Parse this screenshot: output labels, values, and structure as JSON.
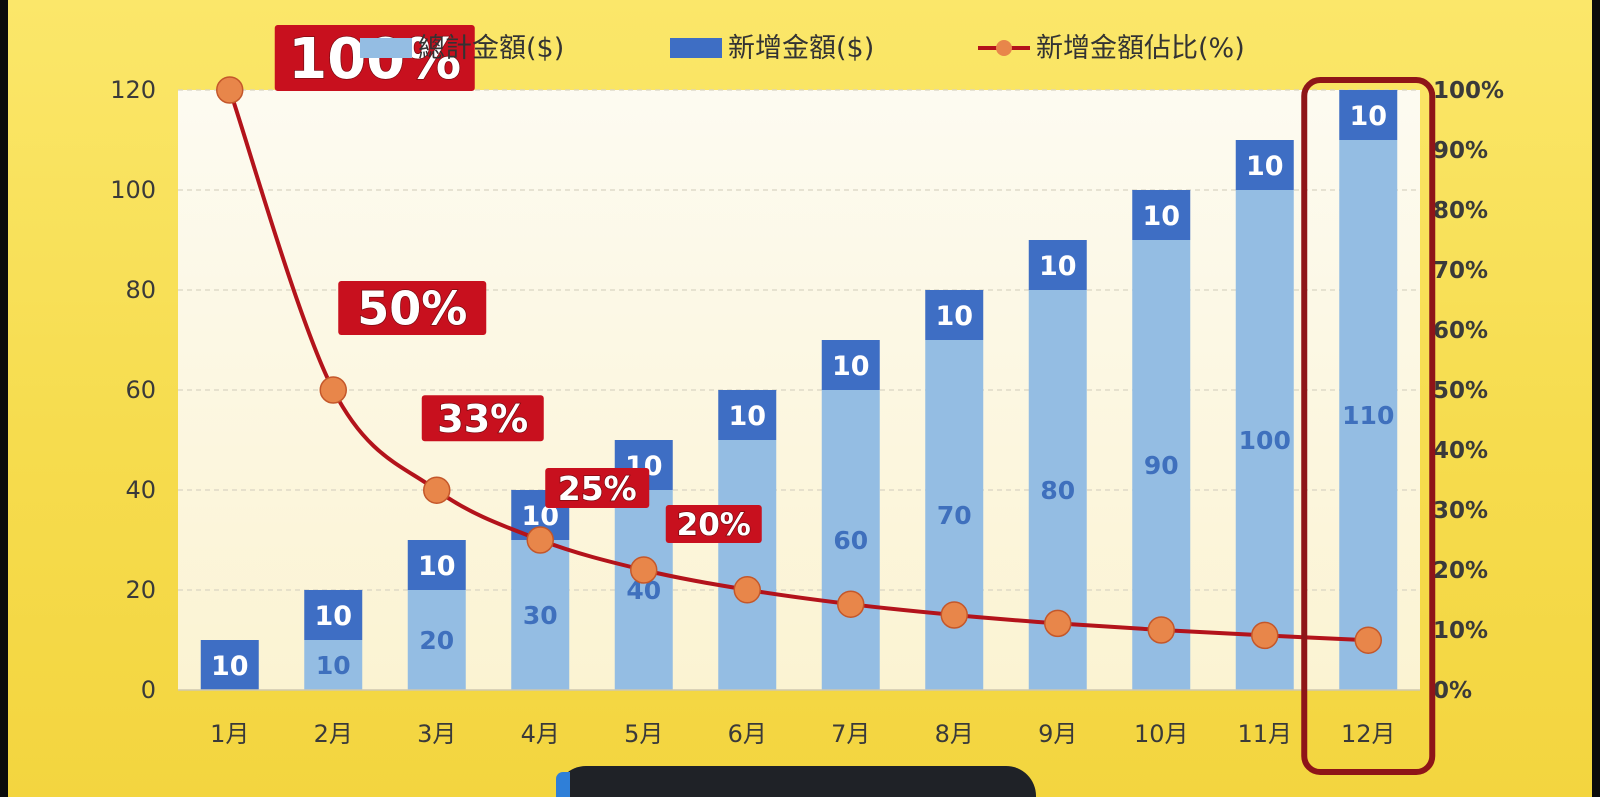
{
  "chart_data": {
    "type": "bar",
    "categories": [
      "1月",
      "2月",
      "3月",
      "4月",
      "5月",
      "6月",
      "7月",
      "8月",
      "9月",
      "10月",
      "11月",
      "12月"
    ],
    "series": [
      {
        "name": "總計金額($)",
        "kind": "stacked-bar-base",
        "color": "#94bde3",
        "values": [
          0,
          10,
          20,
          30,
          40,
          50,
          60,
          70,
          80,
          90,
          100,
          110
        ]
      },
      {
        "name": "新增金額($)",
        "kind": "stacked-bar-top",
        "color": "#3e6ec4",
        "values": [
          10,
          10,
          10,
          10,
          10,
          10,
          10,
          10,
          10,
          10,
          10,
          10
        ]
      },
      {
        "name": "新增金額佔比(%)",
        "kind": "line",
        "axis": "right",
        "color": "#b3131b",
        "marker_color": "#e8864a",
        "values": [
          100,
          50,
          33.3,
          25,
          20,
          16.7,
          14.3,
          12.5,
          11.1,
          10,
          9.1,
          8.3
        ]
      }
    ],
    "base_value_labels": [
      "",
      "10",
      "20",
      "30",
      "40",
      "",
      "60",
      "70",
      "80",
      "90",
      "100",
      "110"
    ],
    "top_value_labels": [
      "10",
      "10",
      "10",
      "10",
      "10",
      "10",
      "10",
      "10",
      "10",
      "10",
      "10",
      "10"
    ],
    "left_axis": {
      "ylim": [
        0,
        120
      ],
      "ticks": [
        "0",
        "20",
        "40",
        "60",
        "80",
        "100",
        "120"
      ]
    },
    "right_axis": {
      "ylim": [
        0,
        100
      ],
      "ticks": [
        "0%",
        "10%",
        "20%",
        "30%",
        "40%",
        "50%",
        "60%",
        "70%",
        "80%",
        "90%",
        "100%"
      ]
    },
    "annotations": [
      {
        "text": "100%",
        "category": "1月",
        "value": 100
      },
      {
        "text": "50%",
        "category": "2月",
        "value": 50
      },
      {
        "text": "33%",
        "category": "3月",
        "value": 33.3
      },
      {
        "text": "25%",
        "category": "4月",
        "value": 25
      },
      {
        "text": "20%",
        "category": "5月",
        "value": 20
      }
    ],
    "highlight_category": "12月",
    "grid": true,
    "legend_position": "top",
    "title": "",
    "xlabel": "",
    "ylabel": ""
  }
}
